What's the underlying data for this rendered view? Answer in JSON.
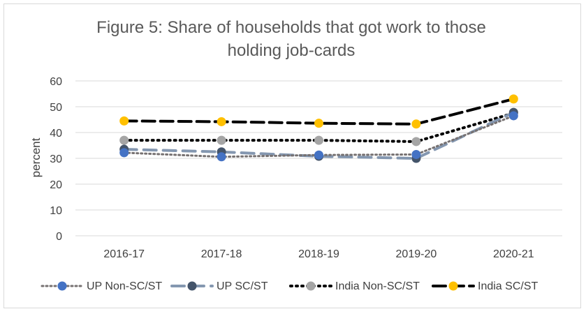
{
  "chart_data": {
    "type": "line",
    "title_line1": "Figure 5: Share of households that got work to those",
    "title_line2": "holding job-cards",
    "ylabel": "percent",
    "xlabel": "",
    "ylim": [
      0,
      60
    ],
    "yticks": [
      0,
      10,
      20,
      30,
      40,
      50,
      60
    ],
    "grid": true,
    "legend_position": "bottom",
    "categories": [
      "2016-17",
      "2017-18",
      "2018-19",
      "2019-20",
      "2020-21"
    ],
    "series": [
      {
        "name": "UP Non-SC/ST",
        "values": [
          32.2,
          30.6,
          31.3,
          31.5,
          46.5
        ],
        "line_color": "#767171",
        "marker_color": "#4472c4",
        "dash": "2,4",
        "width": 3
      },
      {
        "name": "UP SC/ST",
        "values": [
          33.5,
          32.5,
          30.8,
          30.0,
          47.8
        ],
        "line_color": "#8497b0",
        "marker_color": "#44546a",
        "dash": "18,10",
        "width": 4
      },
      {
        "name": "India Non-SC/ST",
        "values": [
          37.0,
          37.0,
          37.0,
          36.5,
          47.5
        ],
        "line_color": "#000000",
        "marker_color": "#a5a5a5",
        "dash": "2,6",
        "width": 4
      },
      {
        "name": "India SC/ST",
        "values": [
          44.5,
          44.2,
          43.6,
          43.3,
          53.0
        ],
        "line_color": "#000000",
        "marker_color": "#ffc000",
        "dash": "18,8",
        "width": 4
      }
    ]
  }
}
